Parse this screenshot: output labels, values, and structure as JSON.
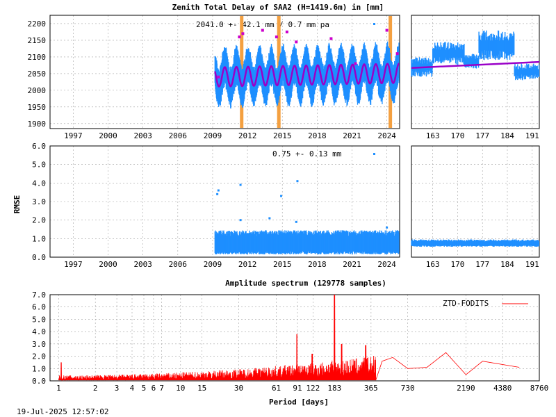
{
  "header": {
    "title": "Zenith Total Delay of SAA2 (H=1419.6m) in [mm]"
  },
  "footer": {
    "timestamp": "19-Jul-2025 12:57:02"
  },
  "colors": {
    "points": "#1e8fff",
    "fit": "#9a00c8",
    "outlier": "#cc00cc",
    "gap": "#f4a040",
    "spectrum": "#ff0000"
  },
  "chart_data": [
    {
      "id": "ztd_timeseries",
      "type": "scatter",
      "title": "Zenith Total Delay of SAA2 (H=1419.6m) in [mm]",
      "annotation": "2041.0 +-  42.1 mm /  0.7 mm pa",
      "xlabel": "",
      "ylabel": "",
      "xlim": [
        1995.5,
        2025.6
      ],
      "ylim": [
        1885,
        2225
      ],
      "x_ticks": [
        "1997",
        "2000",
        "2003",
        "2006",
        "2009",
        "2012",
        "2015",
        "2018",
        "2021",
        "2024"
      ],
      "y_ticks": [
        "1900",
        "1950",
        "2000",
        "2050",
        "2100",
        "2150",
        "2200"
      ],
      "grid": true,
      "data_start_year": 2009.7,
      "mean": 2041.0,
      "mean_std": 42.1,
      "trend_mm_per_year": 0.7,
      "seasonal_amplitude": 33,
      "seasonal_center": 2045,
      "envelope_spread": 45,
      "gap_markers_year": [
        2012.0,
        2015.2,
        2024.8
      ],
      "outliers": [
        {
          "x": 2011.8,
          "y": 2160
        },
        {
          "x": 2012.1,
          "y": 2170
        },
        {
          "x": 2013.8,
          "y": 2180
        },
        {
          "x": 2015.0,
          "y": 2160
        },
        {
          "x": 2015.9,
          "y": 2175
        },
        {
          "x": 2016.7,
          "y": 2145
        },
        {
          "x": 2019.7,
          "y": 2155
        },
        {
          "x": 2021.8,
          "y": 2080
        },
        {
          "x": 2024.5,
          "y": 2180
        },
        {
          "x": 2010.0,
          "y": 2040
        },
        {
          "x": 2025.4,
          "y": 2110
        }
      ]
    },
    {
      "id": "ztd_recent",
      "type": "scatter",
      "xlim": [
        157,
        193
      ],
      "ylim": [
        1885,
        2225
      ],
      "x_ticks": [
        "163",
        "170",
        "177",
        "184",
        "191"
      ],
      "grid": true,
      "fit_line": [
        {
          "x": 157,
          "y": 2067
        },
        {
          "x": 193,
          "y": 2085
        }
      ],
      "clusters": [
        {
          "x0": 157,
          "x1": 163,
          "y0": 2040,
          "y1": 2100
        },
        {
          "x0": 163,
          "x1": 172,
          "y0": 2075,
          "y1": 2145
        },
        {
          "x0": 172,
          "x1": 176,
          "y0": 2065,
          "y1": 2110
        },
        {
          "x0": 176,
          "x1": 186,
          "y0": 2090,
          "y1": 2180
        },
        {
          "x0": 186,
          "x1": 193,
          "y0": 2030,
          "y1": 2080
        }
      ]
    },
    {
      "id": "rmse_timeseries",
      "type": "scatter",
      "annotation": "0.75 +-  0.13 mm",
      "xlabel": "",
      "ylabel": "RMSE",
      "xlim": [
        1995.5,
        2025.6
      ],
      "ylim": [
        0,
        6
      ],
      "x_ticks": [
        "1997",
        "2000",
        "2003",
        "2006",
        "2009",
        "2012",
        "2015",
        "2018",
        "2021",
        "2024"
      ],
      "y_ticks": [
        "0.0",
        "1.0",
        "2.0",
        "3.0",
        "4.0",
        "5.0",
        "6.0"
      ],
      "grid": true,
      "data_start_year": 2009.7,
      "mean": 0.75,
      "std": 0.13,
      "outliers": [
        {
          "x": 2009.9,
          "y": 3.4
        },
        {
          "x": 2010.0,
          "y": 3.6
        },
        {
          "x": 2011.9,
          "y": 3.9
        },
        {
          "x": 2011.9,
          "y": 2.0
        },
        {
          "x": 2013.3,
          "y": 1.3
        },
        {
          "x": 2014.4,
          "y": 2.1
        },
        {
          "x": 2015.4,
          "y": 3.3
        },
        {
          "x": 2016.8,
          "y": 4.1
        },
        {
          "x": 2016.7,
          "y": 1.9
        },
        {
          "x": 2024.5,
          "y": 1.6
        }
      ]
    },
    {
      "id": "rmse_recent",
      "type": "scatter",
      "xlim": [
        157,
        193
      ],
      "ylim": [
        0,
        6
      ],
      "x_ticks": [
        "163",
        "170",
        "177",
        "184",
        "191"
      ],
      "grid": true,
      "level": 0.72
    },
    {
      "id": "amplitude_spectrum",
      "type": "line",
      "title": "Amplitude spectrum (129778 samples)",
      "xlabel": "Period [days]",
      "ylabel": "",
      "x_scale": "log",
      "xlim": [
        0.85,
        8760
      ],
      "ylim": [
        0,
        7
      ],
      "x_ticks": [
        {
          "label": "1",
          "v": 1
        },
        {
          "label": "2",
          "v": 2
        },
        {
          "label": "3",
          "v": 3
        },
        {
          "label": "4",
          "v": 4
        },
        {
          "label": "5",
          "v": 5
        },
        {
          "label": "6",
          "v": 6
        },
        {
          "label": "7",
          "v": 7
        },
        {
          "label": "10",
          "v": 10
        },
        {
          "label": "15",
          "v": 15
        },
        {
          "label": "30",
          "v": 30
        },
        {
          "label": "61",
          "v": 61
        },
        {
          "label": "91",
          "v": 91
        },
        {
          "label": "122",
          "v": 122
        },
        {
          "label": "183",
          "v": 183
        },
        {
          "label": "365",
          "v": 365
        },
        {
          "label": "730",
          "v": 730
        },
        {
          "label": "2190",
          "v": 2190
        },
        {
          "label": "4380",
          "v": 4380
        },
        {
          "label": "8760",
          "v": 8760
        }
      ],
      "y_ticks": [
        "0.0",
        "1.0",
        "2.0",
        "3.0",
        "4.0",
        "5.0",
        "6.0",
        "7.0"
      ],
      "grid": true,
      "series": [
        {
          "name": "ZTD-FODITS",
          "peaks": [
            {
              "period": 1.05,
              "amp": 1.5
            },
            {
              "period": 90,
              "amp": 3.8
            },
            {
              "period": 120,
              "amp": 2.2
            },
            {
              "period": 183,
              "amp": 7.0
            },
            {
              "period": 210,
              "amp": 3.0
            },
            {
              "period": 330,
              "amp": 2.9
            }
          ],
          "tail": [
            {
              "period": 450,
              "amp": 1.6
            },
            {
              "period": 550,
              "amp": 1.9
            },
            {
              "period": 730,
              "amp": 1.0
            },
            {
              "period": 1050,
              "amp": 1.1
            },
            {
              "period": 1500,
              "amp": 2.3
            },
            {
              "period": 2190,
              "amp": 0.5
            },
            {
              "period": 3000,
              "amp": 1.6
            },
            {
              "period": 6000,
              "amp": 1.1
            }
          ]
        }
      ],
      "legend_position": "top-right"
    }
  ]
}
